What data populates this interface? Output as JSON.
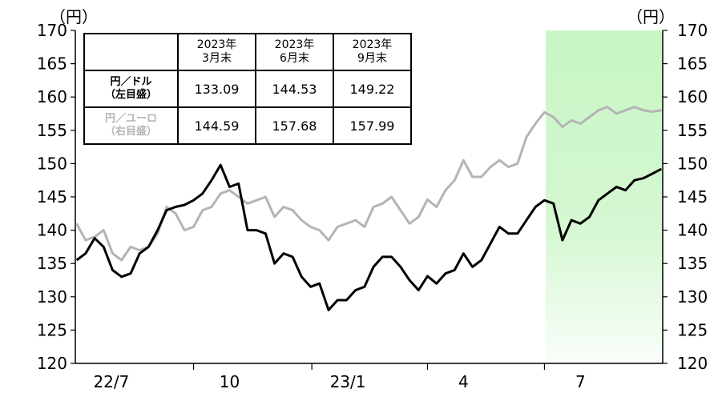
{
  "chart_data": {
    "type": "line",
    "y_unit_left": "（円）",
    "y_unit_right": "（円）",
    "ylim": [
      120,
      170
    ],
    "yticks": [
      120,
      125,
      130,
      135,
      140,
      145,
      150,
      155,
      160,
      165,
      170
    ],
    "x_range": [
      "2022-06-30",
      "2023-09-30"
    ],
    "x_tick_labels": [
      {
        "label": "22/7",
        "date": "2022-07-01"
      },
      {
        "label": "10",
        "date": "2022-10-01"
      },
      {
        "label": "23/1",
        "date": "2023-01-01"
      },
      {
        "label": "4",
        "date": "2023-04-01"
      },
      {
        "label": "7",
        "date": "2023-07-01"
      }
    ],
    "highlight": {
      "from": "2023-07-01",
      "to": "2023-09-30",
      "color": "#c8f5c4"
    },
    "series": [
      {
        "name": "円／ドル",
        "axis": "left",
        "color": "#000000",
        "points": [
          [
            "2022-07-01",
            135.5
          ],
          [
            "2022-07-08",
            136.5
          ],
          [
            "2022-07-15",
            138.8
          ],
          [
            "2022-07-22",
            137.5
          ],
          [
            "2022-07-29",
            134.0
          ],
          [
            "2022-08-05",
            133.0
          ],
          [
            "2022-08-12",
            133.5
          ],
          [
            "2022-08-19",
            136.5
          ],
          [
            "2022-08-26",
            137.5
          ],
          [
            "2022-09-02",
            140.0
          ],
          [
            "2022-09-09",
            143.0
          ],
          [
            "2022-09-16",
            143.5
          ],
          [
            "2022-09-23",
            143.8
          ],
          [
            "2022-09-30",
            144.5
          ],
          [
            "2022-10-07",
            145.5
          ],
          [
            "2022-10-14",
            147.5
          ],
          [
            "2022-10-21",
            149.8
          ],
          [
            "2022-10-28",
            146.5
          ],
          [
            "2022-11-04",
            147.0
          ],
          [
            "2022-11-11",
            140.0
          ],
          [
            "2022-11-18",
            140.0
          ],
          [
            "2022-11-25",
            139.5
          ],
          [
            "2022-12-02",
            135.0
          ],
          [
            "2022-12-09",
            136.5
          ],
          [
            "2022-12-16",
            136.0
          ],
          [
            "2022-12-23",
            133.0
          ],
          [
            "2022-12-30",
            131.5
          ],
          [
            "2023-01-06",
            132.0
          ],
          [
            "2023-01-13",
            128.0
          ],
          [
            "2023-01-20",
            129.5
          ],
          [
            "2023-01-27",
            129.5
          ],
          [
            "2023-02-03",
            131.0
          ],
          [
            "2023-02-10",
            131.5
          ],
          [
            "2023-02-17",
            134.5
          ],
          [
            "2023-02-24",
            136.0
          ],
          [
            "2023-03-03",
            136.0
          ],
          [
            "2023-03-10",
            134.5
          ],
          [
            "2023-03-17",
            132.5
          ],
          [
            "2023-03-24",
            131.0
          ],
          [
            "2023-03-31",
            133.1
          ],
          [
            "2023-04-07",
            132.0
          ],
          [
            "2023-04-14",
            133.5
          ],
          [
            "2023-04-21",
            134.0
          ],
          [
            "2023-04-28",
            136.5
          ],
          [
            "2023-05-05",
            134.5
          ],
          [
            "2023-05-12",
            135.5
          ],
          [
            "2023-05-19",
            138.0
          ],
          [
            "2023-05-26",
            140.5
          ],
          [
            "2023-06-02",
            139.5
          ],
          [
            "2023-06-09",
            139.5
          ],
          [
            "2023-06-16",
            141.5
          ],
          [
            "2023-06-23",
            143.5
          ],
          [
            "2023-06-30",
            144.5
          ],
          [
            "2023-07-07",
            144.0
          ],
          [
            "2023-07-14",
            138.5
          ],
          [
            "2023-07-21",
            141.5
          ],
          [
            "2023-07-28",
            141.0
          ],
          [
            "2023-08-04",
            142.0
          ],
          [
            "2023-08-11",
            144.5
          ],
          [
            "2023-08-18",
            145.5
          ],
          [
            "2023-08-25",
            146.5
          ],
          [
            "2023-09-01",
            146.0
          ],
          [
            "2023-09-08",
            147.5
          ],
          [
            "2023-09-15",
            147.8
          ],
          [
            "2023-09-22",
            148.5
          ],
          [
            "2023-09-29",
            149.2
          ]
        ]
      },
      {
        "name": "円／ユーロ",
        "axis": "right",
        "color": "#b4b4b4",
        "points": [
          [
            "2022-07-01",
            141.0
          ],
          [
            "2022-07-08",
            138.5
          ],
          [
            "2022-07-15",
            139.0
          ],
          [
            "2022-07-22",
            140.0
          ],
          [
            "2022-07-29",
            136.5
          ],
          [
            "2022-08-05",
            135.5
          ],
          [
            "2022-08-12",
            137.5
          ],
          [
            "2022-08-19",
            137.0
          ],
          [
            "2022-08-26",
            137.5
          ],
          [
            "2022-09-02",
            139.5
          ],
          [
            "2022-09-09",
            143.5
          ],
          [
            "2022-09-16",
            142.5
          ],
          [
            "2022-09-23",
            140.0
          ],
          [
            "2022-09-30",
            140.5
          ],
          [
            "2022-10-07",
            143.0
          ],
          [
            "2022-10-14",
            143.5
          ],
          [
            "2022-10-21",
            145.5
          ],
          [
            "2022-10-28",
            146.0
          ],
          [
            "2022-11-04",
            145.0
          ],
          [
            "2022-11-11",
            144.0
          ],
          [
            "2022-11-18",
            144.5
          ],
          [
            "2022-11-25",
            145.0
          ],
          [
            "2022-12-02",
            142.0
          ],
          [
            "2022-12-09",
            143.5
          ],
          [
            "2022-12-16",
            143.0
          ],
          [
            "2022-12-23",
            141.5
          ],
          [
            "2022-12-30",
            140.5
          ],
          [
            "2023-01-06",
            140.0
          ],
          [
            "2023-01-13",
            138.5
          ],
          [
            "2023-01-20",
            140.5
          ],
          [
            "2023-01-27",
            141.0
          ],
          [
            "2023-02-03",
            141.5
          ],
          [
            "2023-02-10",
            140.5
          ],
          [
            "2023-02-17",
            143.5
          ],
          [
            "2023-02-24",
            144.0
          ],
          [
            "2023-03-03",
            145.0
          ],
          [
            "2023-03-10",
            143.0
          ],
          [
            "2023-03-17",
            141.0
          ],
          [
            "2023-03-24",
            142.0
          ],
          [
            "2023-03-31",
            144.6
          ],
          [
            "2023-04-07",
            143.5
          ],
          [
            "2023-04-14",
            146.0
          ],
          [
            "2023-04-21",
            147.5
          ],
          [
            "2023-04-28",
            150.5
          ],
          [
            "2023-05-05",
            148.0
          ],
          [
            "2023-05-12",
            148.0
          ],
          [
            "2023-05-19",
            149.5
          ],
          [
            "2023-05-26",
            150.5
          ],
          [
            "2023-06-02",
            149.5
          ],
          [
            "2023-06-09",
            150.0
          ],
          [
            "2023-06-16",
            154.0
          ],
          [
            "2023-06-23",
            156.0
          ],
          [
            "2023-06-30",
            157.7
          ],
          [
            "2023-07-07",
            157.0
          ],
          [
            "2023-07-14",
            155.5
          ],
          [
            "2023-07-21",
            156.5
          ],
          [
            "2023-07-28",
            156.0
          ],
          [
            "2023-08-04",
            157.0
          ],
          [
            "2023-08-11",
            158.0
          ],
          [
            "2023-08-18",
            158.5
          ],
          [
            "2023-08-25",
            157.5
          ],
          [
            "2023-09-01",
            158.0
          ],
          [
            "2023-09-08",
            158.5
          ],
          [
            "2023-09-15",
            158.0
          ],
          [
            "2023-09-22",
            157.8
          ],
          [
            "2023-09-29",
            158.0
          ]
        ]
      }
    ]
  },
  "table": {
    "headers": [
      "2023年\n3月末",
      "2023年\n6月末",
      "2023年\n9月末"
    ],
    "rows": [
      {
        "label_line1": "円／ドル",
        "label_line2": "（左目盛）",
        "values": [
          "133.09",
          "144.53",
          "149.22"
        ]
      },
      {
        "label_line1": "円／ユーロ",
        "label_line2": "（右目盛）",
        "values": [
          "144.59",
          "157.68",
          "157.99"
        ]
      }
    ]
  }
}
